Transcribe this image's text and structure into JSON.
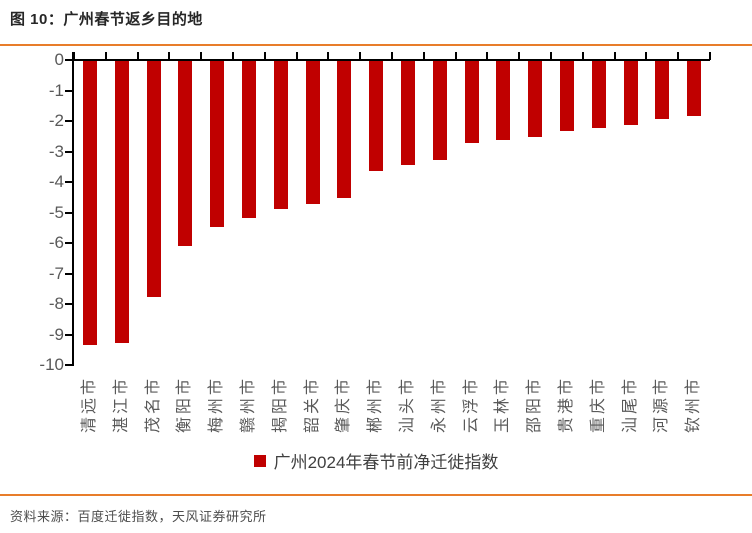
{
  "header": {
    "title": "图 10：广州春节返乡目的地"
  },
  "footer": {
    "source": "资料来源：百度迁徙指数，天风证券研究所"
  },
  "colors": {
    "bar": "#C00000",
    "accent_rule": "#E87D2A",
    "axis": "#000000",
    "tick_label": "#595959"
  },
  "chart_data": {
    "type": "bar",
    "title": "广州春节返乡目的地",
    "legend": "广州2024年春节前净迁徙指数",
    "legend_position": "bottom",
    "categories": [
      "清远市",
      "湛江市",
      "茂名市",
      "衡阳市",
      "梅州市",
      "赣州市",
      "揭阳市",
      "韶关市",
      "肇庆市",
      "郴州市",
      "汕头市",
      "永州市",
      "云浮市",
      "玉林市",
      "邵阳市",
      "贵港市",
      "重庆市",
      "汕尾市",
      "河源市",
      "钦州市"
    ],
    "values": [
      -9.3,
      -9.25,
      -7.75,
      -6.05,
      -5.45,
      -5.15,
      -4.85,
      -4.7,
      -4.5,
      -3.6,
      -3.4,
      -3.25,
      -2.7,
      -2.6,
      -2.5,
      -2.3,
      -2.2,
      -2.1,
      -1.9,
      -1.8
    ],
    "ylim": [
      -10,
      0
    ],
    "y_ticks": [
      0,
      -1,
      -2,
      -3,
      -4,
      -5,
      -6,
      -7,
      -8,
      -9,
      -10
    ],
    "grid": false
  }
}
